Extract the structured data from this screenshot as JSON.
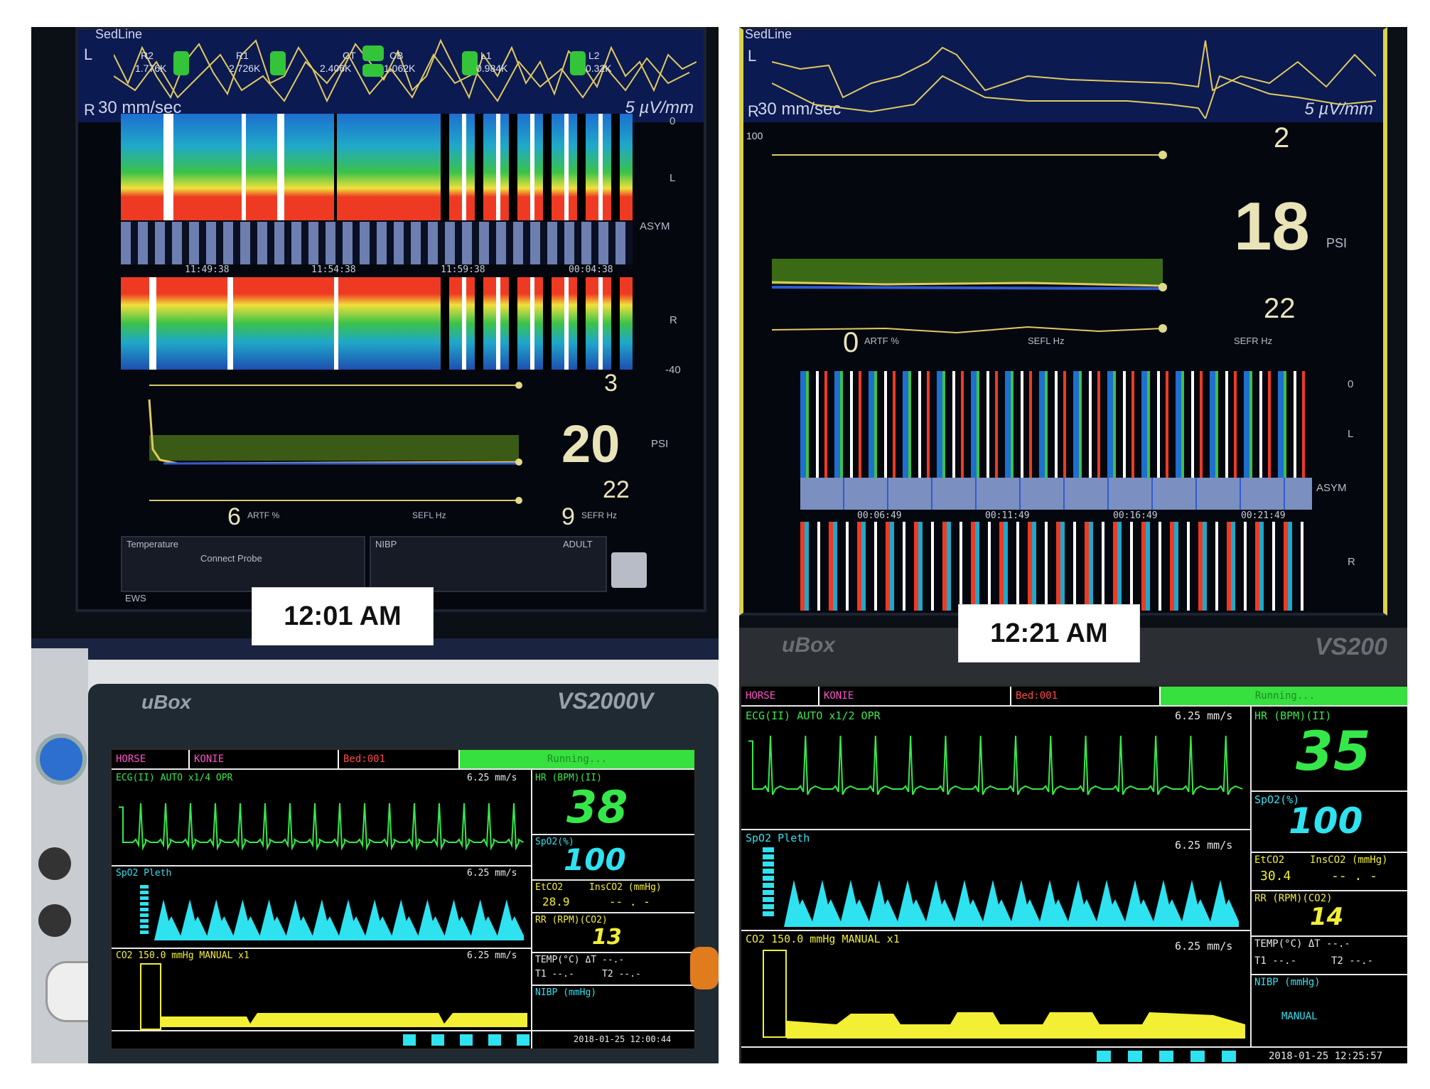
{
  "left_panel": {
    "time_label": "12:01 AM",
    "sedline": {
      "header_label": "SedLine",
      "side_l": "L",
      "side_r": "R",
      "sweep": "30 mm/sec",
      "scale": "5 µV/mm",
      "impedances": [
        {
          "name": "R2",
          "value": "1.776K"
        },
        {
          "name": "R1",
          "value": "2.726K"
        },
        {
          "name": "CT",
          "value": "2.406K"
        },
        {
          "name": "CB",
          "value": "1.062K"
        },
        {
          "name": "L1",
          "value": "0.984K"
        },
        {
          "name": "L2",
          "value": "0.32K"
        }
      ],
      "timestamps": [
        "11:49:38",
        "11:54:38",
        "11:59:38",
        "00:04:38"
      ],
      "asym": "ASYM",
      "spectral_l": "L",
      "spectral_r": "R",
      "spectral_scale_top": "0",
      "spectral_scale_bottom": "-40",
      "emg": "3",
      "psi": "20",
      "psi_unit": "PSI",
      "sr": "22",
      "artf": "6",
      "artf_unit": "ARTF %",
      "sefl_unit": "SEFL Hz",
      "sefr": "9",
      "sefr_unit": "SEFR Hz",
      "temp_label": "Temperature",
      "connect_probe": "Connect Probe",
      "nibp_label": "NIBP",
      "adult": "ADULT",
      "ews": "EWS"
    },
    "ubox": {
      "brand": "uBox",
      "model": "VS2000V",
      "patient_type": "HORSE",
      "name": "KONIE",
      "bed": "Bed:001",
      "status": "Running...",
      "ecg_label": "ECG(II)   AUTO    x1/4  OPR",
      "ecg_speed": "6.25 mm/s",
      "hr_label": "HR   (BPM)(II)",
      "hr": "38",
      "spo2_label": "SpO2(%)",
      "spo2": "100",
      "etco2_label": "EtCO2",
      "insco2_label": "InsCO2  (mmHg)",
      "etco2": "28.9",
      "insco2": "-- . -",
      "pleth_label": "SpO2 Pleth",
      "pleth_speed": "6.25 mm/s",
      "rr_label": "RR    (RPM)(CO2)",
      "rr": "13",
      "temp_label": "TEMP(°C) ΔT   --.-",
      "t1": "T1  --.-",
      "t2": "T2  --.-",
      "co2_label": "CO2      150.0 mmHg MANUAL   x1",
      "co2_speed": "6.25 mm/s",
      "nibp_label": "NIBP  (mmHg)",
      "datetime": "2018-01-25  12:00:44"
    }
  },
  "right_panel": {
    "time_label": "12:21 AM",
    "sedline": {
      "header_label": "SedLine",
      "side_l": "L",
      "side_r": "R",
      "sweep": "30 mm/sec",
      "scale": "5 µV/mm",
      "emg": "2",
      "psi": "18",
      "psi_unit": "PSI",
      "sr": "22",
      "artf": "0",
      "artf_unit": "ARTF %",
      "sefl_unit": "SEFL Hz",
      "sefr_unit": "SEFR Hz",
      "timestamps": [
        "00:06:49",
        "00:11:49",
        "00:16:49",
        "00:21:49"
      ],
      "asym": "ASYM",
      "spectral_l": "L",
      "spectral_r": "R",
      "spectral_scale_top": "0"
    },
    "ubox": {
      "brand": "uBox",
      "model": "VS200",
      "patient_type": "HORSE",
      "name": "KONIE",
      "bed": "Bed:001",
      "status": "Running...",
      "ecg_label": "ECG(II)  AUTO    x1/2  OPR",
      "ecg_speed": "6.25 mm/s",
      "hr_label": "HR   (BPM)(II)",
      "hr": "35",
      "spo2_label": "SpO2(%)",
      "spo2": "100",
      "etco2_label": "EtCO2",
      "insco2_label": "InsCO2  (mmHg)",
      "etco2": "30.4",
      "insco2": "-- . -",
      "pleth_label": "SpO2 Pleth",
      "pleth_speed": "6.25 mm/s",
      "rr_label": "RR    (RPM)(CO2)",
      "rr": "14",
      "temp_label": "TEMP(°C) ΔT   --.-",
      "t1": "T1  --.-",
      "t2": "T2  --.-",
      "co2_label": "CO2      150.0 mmHg MANUAL   x1",
      "co2_speed": "6.25 mm/s",
      "nibp_label": "NIBP  (mmHg)",
      "nibp_mode": "MANUAL",
      "datetime": "2018-01-25  12:25:57"
    }
  },
  "colors": {
    "trace_yellow": "#e8d87a",
    "ecg_green": "#35e84a",
    "pleth_cyan": "#2ee2f0",
    "co2_yellow": "#f2ef35",
    "running_green": "#36e03f"
  }
}
